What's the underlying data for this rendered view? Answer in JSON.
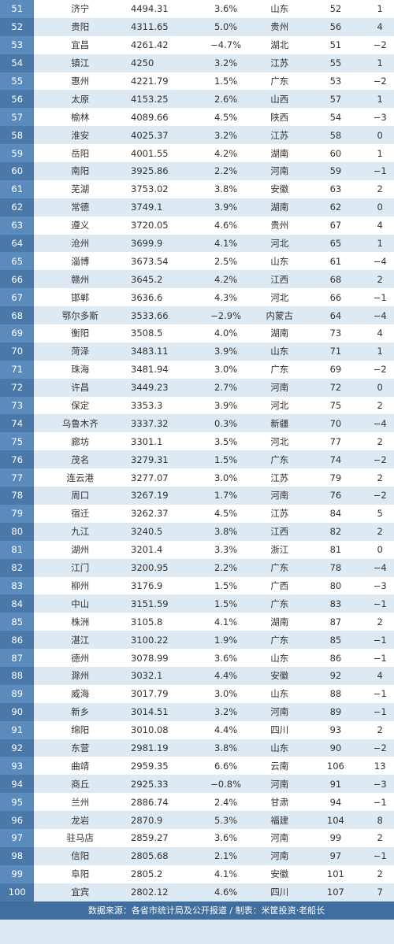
{
  "rows": [
    {
      "rank": "51",
      "city": "济宁",
      "gdp": "4494.31",
      "growth": "3.6%",
      "province": "山东",
      "prev_rank": "52",
      "change": "1"
    },
    {
      "rank": "52",
      "city": "贵阳",
      "gdp": "4311.65",
      "growth": "5.0%",
      "province": "贵州",
      "prev_rank": "56",
      "change": "4"
    },
    {
      "rank": "53",
      "city": "宜昌",
      "gdp": "4261.42",
      "growth": "−4.7%",
      "province": "湖北",
      "prev_rank": "51",
      "change": "−2"
    },
    {
      "rank": "54",
      "city": "镇江",
      "gdp": "4250",
      "growth": "3.2%",
      "province": "江苏",
      "prev_rank": "55",
      "change": "1"
    },
    {
      "rank": "55",
      "city": "惠州",
      "gdp": "4221.79",
      "growth": "1.5%",
      "province": "广东",
      "prev_rank": "53",
      "change": "−2"
    },
    {
      "rank": "56",
      "city": "太原",
      "gdp": "4153.25",
      "growth": "2.6%",
      "province": "山西",
      "prev_rank": "57",
      "change": "1"
    },
    {
      "rank": "57",
      "city": "榆林",
      "gdp": "4089.66",
      "growth": "4.5%",
      "province": "陕西",
      "prev_rank": "54",
      "change": "−3"
    },
    {
      "rank": "58",
      "city": "淮安",
      "gdp": "4025.37",
      "growth": "3.2%",
      "province": "江苏",
      "prev_rank": "58",
      "change": "0"
    },
    {
      "rank": "59",
      "city": "岳阳",
      "gdp": "4001.55",
      "growth": "4.2%",
      "province": "湖南",
      "prev_rank": "60",
      "change": "1"
    },
    {
      "rank": "60",
      "city": "南阳",
      "gdp": "3925.86",
      "growth": "2.2%",
      "province": "河南",
      "prev_rank": "59",
      "change": "−1"
    },
    {
      "rank": "61",
      "city": "芜湖",
      "gdp": "3753.02",
      "growth": "3.8%",
      "province": "安徽",
      "prev_rank": "63",
      "change": "2"
    },
    {
      "rank": "62",
      "city": "常德",
      "gdp": "3749.1",
      "growth": "3.9%",
      "province": "湖南",
      "prev_rank": "62",
      "change": "0"
    },
    {
      "rank": "63",
      "city": "遵义",
      "gdp": "3720.05",
      "growth": "4.6%",
      "province": "贵州",
      "prev_rank": "67",
      "change": "4"
    },
    {
      "rank": "64",
      "city": "沧州",
      "gdp": "3699.9",
      "growth": "4.1%",
      "province": "河北",
      "prev_rank": "65",
      "change": "1"
    },
    {
      "rank": "65",
      "city": "淄博",
      "gdp": "3673.54",
      "growth": "2.5%",
      "province": "山东",
      "prev_rank": "61",
      "change": "−4"
    },
    {
      "rank": "66",
      "city": "赣州",
      "gdp": "3645.2",
      "growth": "4.2%",
      "province": "江西",
      "prev_rank": "68",
      "change": "2"
    },
    {
      "rank": "67",
      "city": "邯郸",
      "gdp": "3636.6",
      "growth": "4.3%",
      "province": "河北",
      "prev_rank": "66",
      "change": "−1"
    },
    {
      "rank": "68",
      "city": "鄂尔多斯",
      "gdp": "3533.66",
      "growth": "−2.9%",
      "province": "内蒙古",
      "prev_rank": "64",
      "change": "−4"
    },
    {
      "rank": "69",
      "city": "衡阳",
      "gdp": "3508.5",
      "growth": "4.0%",
      "province": "湖南",
      "prev_rank": "73",
      "change": "4"
    },
    {
      "rank": "70",
      "city": "菏泽",
      "gdp": "3483.11",
      "growth": "3.9%",
      "province": "山东",
      "prev_rank": "71",
      "change": "1"
    },
    {
      "rank": "71",
      "city": "珠海",
      "gdp": "3481.94",
      "growth": "3.0%",
      "province": "广东",
      "prev_rank": "69",
      "change": "−2"
    },
    {
      "rank": "72",
      "city": "许昌",
      "gdp": "3449.23",
      "growth": "2.7%",
      "province": "河南",
      "prev_rank": "72",
      "change": "0"
    },
    {
      "rank": "73",
      "city": "保定",
      "gdp": "3353.3",
      "growth": "3.9%",
      "province": "河北",
      "prev_rank": "75",
      "change": "2"
    },
    {
      "rank": "74",
      "city": "乌鲁木齐",
      "gdp": "3337.32",
      "growth": "0.3%",
      "province": "新疆",
      "prev_rank": "70",
      "change": "−4"
    },
    {
      "rank": "75",
      "city": "廊坊",
      "gdp": "3301.1",
      "growth": "3.5%",
      "province": "河北",
      "prev_rank": "77",
      "change": "2"
    },
    {
      "rank": "76",
      "city": "茂名",
      "gdp": "3279.31",
      "growth": "1.5%",
      "province": "广东",
      "prev_rank": "74",
      "change": "−2"
    },
    {
      "rank": "77",
      "city": "连云港",
      "gdp": "3277.07",
      "growth": "3.0%",
      "province": "江苏",
      "prev_rank": "79",
      "change": "2"
    },
    {
      "rank": "78",
      "city": "周口",
      "gdp": "3267.19",
      "growth": "1.7%",
      "province": "河南",
      "prev_rank": "76",
      "change": "−2"
    },
    {
      "rank": "79",
      "city": "宿迁",
      "gdp": "3262.37",
      "growth": "4.5%",
      "province": "江苏",
      "prev_rank": "84",
      "change": "5"
    },
    {
      "rank": "80",
      "city": "九江",
      "gdp": "3240.5",
      "growth": "3.8%",
      "province": "江西",
      "prev_rank": "82",
      "change": "2"
    },
    {
      "rank": "81",
      "city": "湖州",
      "gdp": "3201.4",
      "growth": "3.3%",
      "province": "浙江",
      "prev_rank": "81",
      "change": "0"
    },
    {
      "rank": "82",
      "city": "江门",
      "gdp": "3200.95",
      "growth": "2.2%",
      "province": "广东",
      "prev_rank": "78",
      "change": "−4"
    },
    {
      "rank": "83",
      "city": "柳州",
      "gdp": "3176.9",
      "growth": "1.5%",
      "province": "广西",
      "prev_rank": "80",
      "change": "−3"
    },
    {
      "rank": "84",
      "city": "中山",
      "gdp": "3151.59",
      "growth": "1.5%",
      "province": "广东",
      "prev_rank": "83",
      "change": "−1"
    },
    {
      "rank": "85",
      "city": "株洲",
      "gdp": "3105.8",
      "growth": "4.1%",
      "province": "湖南",
      "prev_rank": "87",
      "change": "2"
    },
    {
      "rank": "86",
      "city": "湛江",
      "gdp": "3100.22",
      "growth": "1.9%",
      "province": "广东",
      "prev_rank": "85",
      "change": "−1"
    },
    {
      "rank": "87",
      "city": "德州",
      "gdp": "3078.99",
      "growth": "3.6%",
      "province": "山东",
      "prev_rank": "86",
      "change": "−1"
    },
    {
      "rank": "88",
      "city": "滁州",
      "gdp": "3032.1",
      "growth": "4.4%",
      "province": "安徽",
      "prev_rank": "92",
      "change": "4"
    },
    {
      "rank": "89",
      "city": "威海",
      "gdp": "3017.79",
      "growth": "3.0%",
      "province": "山东",
      "prev_rank": "88",
      "change": "−1"
    },
    {
      "rank": "90",
      "city": "新乡",
      "gdp": "3014.51",
      "growth": "3.2%",
      "province": "河南",
      "prev_rank": "89",
      "change": "−1"
    },
    {
      "rank": "91",
      "city": "绵阳",
      "gdp": "3010.08",
      "growth": "4.4%",
      "province": "四川",
      "prev_rank": "93",
      "change": "2"
    },
    {
      "rank": "92",
      "city": "东营",
      "gdp": "2981.19",
      "growth": "3.8%",
      "province": "山东",
      "prev_rank": "90",
      "change": "−2"
    },
    {
      "rank": "93",
      "city": "曲靖",
      "gdp": "2959.35",
      "growth": "6.6%",
      "province": "云南",
      "prev_rank": "106",
      "change": "13"
    },
    {
      "rank": "94",
      "city": "商丘",
      "gdp": "2925.33",
      "growth": "−0.8%",
      "province": "河南",
      "prev_rank": "91",
      "change": "−3"
    },
    {
      "rank": "95",
      "city": "兰州",
      "gdp": "2886.74",
      "growth": "2.4%",
      "province": "甘肃",
      "prev_rank": "94",
      "change": "−1"
    },
    {
      "rank": "96",
      "city": "龙岩",
      "gdp": "2870.9",
      "growth": "5.3%",
      "province": "福建",
      "prev_rank": "104",
      "change": "8"
    },
    {
      "rank": "97",
      "city": "驻马店",
      "gdp": "2859.27",
      "growth": "3.6%",
      "province": "河南",
      "prev_rank": "99",
      "change": "2"
    },
    {
      "rank": "98",
      "city": "信阳",
      "gdp": "2805.68",
      "growth": "2.1%",
      "province": "河南",
      "prev_rank": "97",
      "change": "−1"
    },
    {
      "rank": "99",
      "city": "阜阳",
      "gdp": "2805.2",
      "growth": "4.1%",
      "province": "安徽",
      "prev_rank": "101",
      "change": "2"
    },
    {
      "rank": "100",
      "city": "宜宾",
      "gdp": "2802.12",
      "growth": "4.6%",
      "province": "四川",
      "prev_rank": "107",
      "change": "7"
    }
  ],
  "footer": {
    "source": "数据来源：各省市统计局及公开报道 / 制表：米筐投资·老船长"
  }
}
